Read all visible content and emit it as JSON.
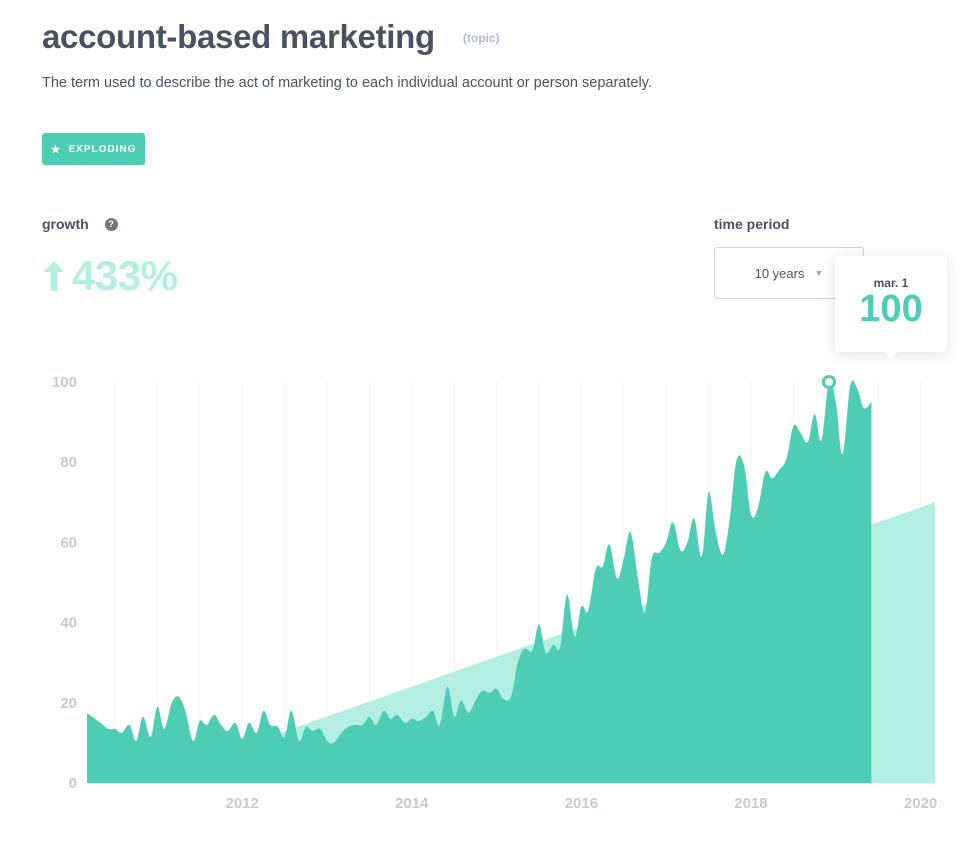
{
  "header": {
    "title": "account-based marketing",
    "tag": "(topic)",
    "description": "The term used to describe the act of marketing to each individual account or person separately."
  },
  "badge": {
    "label": "EXPLODING",
    "icon": "star-icon"
  },
  "growth": {
    "label": "growth",
    "value": "433%",
    "help_icon": "question-icon",
    "arrow_icon": "arrow-up-icon"
  },
  "time_period": {
    "label": "time period",
    "selected": "10 years"
  },
  "tooltip": {
    "date": "mar. 1",
    "value": "100"
  },
  "colors": {
    "accent": "#4ecdb5",
    "trend": "#b3eee3",
    "tick": "#c3cbd3",
    "text": "#4a5160"
  },
  "chart_data": {
    "type": "area",
    "title": "",
    "xlabel": "",
    "ylabel": "",
    "ylim": [
      0,
      100
    ],
    "xlim": [
      2010.67,
      2020.67
    ],
    "y_ticks": [
      "0",
      "20",
      "40",
      "60",
      "80",
      "100"
    ],
    "x_ticks": [
      "2012",
      "2014",
      "2016",
      "2018",
      "2020"
    ],
    "grid": "vertical",
    "series": [
      {
        "values_xy": [
          [
            2010.67,
            17.5
          ],
          [
            2010.83,
            15
          ],
          [
            2010.92,
            13.5
          ],
          [
            2011.0,
            13.5
          ],
          [
            2011.08,
            12.5
          ],
          [
            2011.17,
            14.5
          ],
          [
            2011.25,
            10.5
          ],
          [
            2011.33,
            16.5
          ],
          [
            2011.42,
            11.5
          ],
          [
            2011.5,
            19
          ],
          [
            2011.58,
            13.5
          ],
          [
            2011.67,
            20
          ],
          [
            2011.75,
            21.5
          ],
          [
            2011.83,
            18
          ],
          [
            2011.92,
            10.5
          ],
          [
            2012.0,
            15.5
          ],
          [
            2012.08,
            14.5
          ],
          [
            2012.17,
            17
          ],
          [
            2012.25,
            14.5
          ],
          [
            2012.33,
            13
          ],
          [
            2012.42,
            15
          ],
          [
            2012.5,
            11
          ],
          [
            2012.58,
            15
          ],
          [
            2012.67,
            12.5
          ],
          [
            2012.75,
            18
          ],
          [
            2012.83,
            14.5
          ],
          [
            2012.92,
            14
          ],
          [
            2013.0,
            11.5
          ],
          [
            2013.08,
            18
          ],
          [
            2013.17,
            10.5
          ],
          [
            2013.25,
            14
          ],
          [
            2013.33,
            13
          ],
          [
            2013.42,
            13.5
          ],
          [
            2013.5,
            10.5
          ],
          [
            2013.58,
            10
          ],
          [
            2013.67,
            12.5
          ],
          [
            2013.75,
            14
          ],
          [
            2013.83,
            14.5
          ],
          [
            2013.92,
            14.5
          ],
          [
            2014.0,
            16.5
          ],
          [
            2014.08,
            14.5
          ],
          [
            2014.17,
            18
          ],
          [
            2014.25,
            16
          ],
          [
            2014.33,
            17
          ],
          [
            2014.42,
            15
          ],
          [
            2014.5,
            16
          ],
          [
            2014.58,
            15.5
          ],
          [
            2014.67,
            16.5
          ],
          [
            2014.75,
            18
          ],
          [
            2014.83,
            14.5
          ],
          [
            2014.92,
            24
          ],
          [
            2015.0,
            16.5
          ],
          [
            2015.08,
            20.5
          ],
          [
            2015.17,
            17.5
          ],
          [
            2015.25,
            20.5
          ],
          [
            2015.33,
            23
          ],
          [
            2015.42,
            22.5
          ],
          [
            2015.5,
            23.5
          ],
          [
            2015.58,
            21
          ],
          [
            2015.67,
            21.5
          ],
          [
            2015.75,
            30
          ],
          [
            2015.83,
            33.5
          ],
          [
            2015.92,
            33
          ],
          [
            2016.0,
            39.5
          ],
          [
            2016.08,
            32.5
          ],
          [
            2016.17,
            34.5
          ],
          [
            2016.25,
            34
          ],
          [
            2016.33,
            47
          ],
          [
            2016.42,
            36.5
          ],
          [
            2016.5,
            44
          ],
          [
            2016.58,
            43
          ],
          [
            2016.67,
            53.5
          ],
          [
            2016.75,
            54
          ],
          [
            2016.83,
            59.5
          ],
          [
            2016.92,
            51
          ],
          [
            2017.0,
            56
          ],
          [
            2017.08,
            62.5
          ],
          [
            2017.17,
            50.5
          ],
          [
            2017.25,
            42.5
          ],
          [
            2017.33,
            56
          ],
          [
            2017.42,
            57.5
          ],
          [
            2017.5,
            60
          ],
          [
            2017.58,
            65
          ],
          [
            2017.67,
            58
          ],
          [
            2017.75,
            60
          ],
          [
            2017.83,
            66
          ],
          [
            2017.92,
            56.5
          ],
          [
            2018.0,
            72.5
          ],
          [
            2018.08,
            63
          ],
          [
            2018.17,
            57
          ],
          [
            2018.25,
            66
          ],
          [
            2018.33,
            80.5
          ],
          [
            2018.42,
            79
          ],
          [
            2018.5,
            67
          ],
          [
            2018.58,
            68.5
          ],
          [
            2018.67,
            77.5
          ],
          [
            2018.75,
            76
          ],
          [
            2018.83,
            78
          ],
          [
            2018.92,
            81
          ],
          [
            2019.0,
            89
          ],
          [
            2019.08,
            87.5
          ],
          [
            2019.17,
            85
          ],
          [
            2019.25,
            92
          ],
          [
            2019.33,
            85.5
          ],
          [
            2019.42,
            100
          ],
          [
            2019.5,
            95
          ],
          [
            2019.58,
            82
          ],
          [
            2019.67,
            99
          ],
          [
            2019.75,
            98.5
          ],
          [
            2019.83,
            93.5
          ],
          [
            2019.92,
            95
          ]
        ],
        "note_region": "trend"
      },
      {
        "name": "",
        "values_xy": [
          [
            2012.75,
            11
          ],
          [
            2020.67,
            70
          ]
        ]
      }
    ],
    "highlight_point": {
      "x": 2019.42,
      "y": 100
    }
  }
}
